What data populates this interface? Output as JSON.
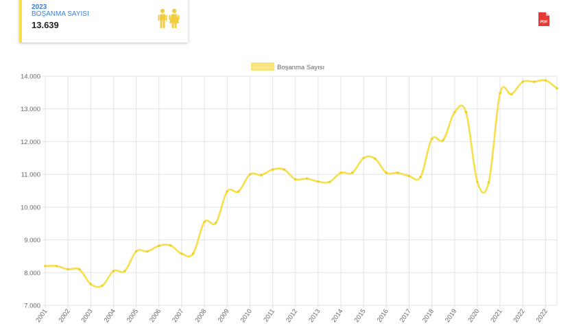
{
  "stat_card": {
    "year": "2023",
    "label": "BOŞANMA SAYISI",
    "value": "13.639",
    "icon": "family-icon",
    "icon_color": "#f2cd3f"
  },
  "toolbar": {
    "pdf_icon": "pdf-icon",
    "pdf_label": "PDF",
    "pdf_color": "#e53935"
  },
  "colors": {
    "line": "#f7df4a",
    "line_point": "#efcf2c",
    "legend_fill": "#f9e58a",
    "grid": "#e3e3e3"
  },
  "chart_data": {
    "type": "line",
    "title": "",
    "xlabel": "",
    "ylabel": "",
    "legend": {
      "position": "top",
      "labels": [
        "Boşanma Sayısı"
      ]
    },
    "grid": true,
    "ylim": [
      7000,
      14000
    ],
    "y_ticks": [
      7000,
      8000,
      9000,
      10000,
      11000,
      12000,
      13000,
      14000
    ],
    "y_tick_labels": [
      "7.000",
      "8.000",
      "9.000",
      "10.000",
      "11.000",
      "12.000",
      "13.000",
      "14.000"
    ],
    "x_ticks": [
      "2001",
      "2002",
      "2003",
      "2004",
      "2005",
      "2006",
      "2007",
      "2008",
      "2009",
      "2010",
      "2011",
      "2012",
      "2013",
      "2014",
      "2015",
      "2016",
      "2017",
      "2018",
      "2019",
      "2020",
      "2021",
      "2022",
      "2022"
    ],
    "series": [
      {
        "name": "Boşanma Sayısı",
        "x": [
          2001,
          2001.5,
          2002,
          2002.5,
          2003,
          2003.5,
          2004,
          2004.5,
          2005,
          2005.5,
          2006,
          2006.5,
          2007,
          2007.5,
          2008,
          2008.5,
          2009,
          2009.5,
          2010,
          2010.5,
          2011,
          2011.5,
          2012,
          2012.5,
          2013,
          2013.5,
          2014,
          2014.5,
          2015,
          2015.5,
          2016,
          2016.5,
          2017,
          2017.5,
          2018,
          2018.5,
          2019,
          2019.5,
          2020,
          2020.5,
          2021,
          2021.5,
          2022,
          2022.5,
          2023,
          2023.5
        ],
        "values": [
          8200,
          8200,
          8100,
          8100,
          7650,
          7600,
          8050,
          8050,
          8650,
          8650,
          8820,
          8830,
          8580,
          8580,
          9550,
          9520,
          10480,
          10480,
          11000,
          10980,
          11150,
          11150,
          10850,
          10870,
          10780,
          10770,
          11050,
          11050,
          11500,
          11480,
          11050,
          11050,
          10950,
          10920,
          12080,
          12050,
          12900,
          12900,
          10770,
          10750,
          13480,
          13450,
          13830,
          13830,
          13870,
          13630
        ]
      }
    ]
  }
}
